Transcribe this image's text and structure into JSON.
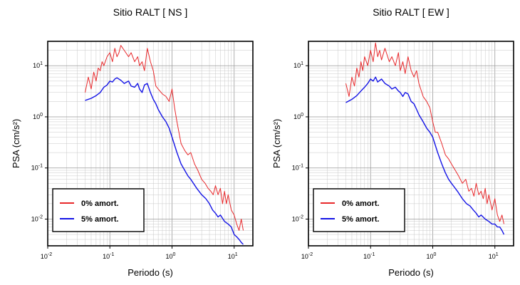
{
  "chart_data": [
    {
      "type": "line",
      "title": "Sitio RALT [ NS ]",
      "xlabel": "Periodo (s)",
      "ylabel": "PSA (cm/s²)",
      "xscale": "log",
      "yscale": "log",
      "xlim": [
        0.01,
        20
      ],
      "ylim": [
        0.003,
        30
      ],
      "grid": true,
      "legend_position": "bottom-left",
      "x_tick_labels": [
        "10-2",
        "10-1",
        "100",
        "101"
      ],
      "y_tick_labels": [
        "10-2",
        "10-1",
        "100",
        "101"
      ],
      "series": [
        {
          "name": "0% amort.",
          "color": "#e8282b",
          "x": [
            0.04,
            0.045,
            0.05,
            0.055,
            0.06,
            0.065,
            0.07,
            0.075,
            0.08,
            0.09,
            0.1,
            0.11,
            0.12,
            0.13,
            0.14,
            0.15,
            0.17,
            0.2,
            0.22,
            0.25,
            0.28,
            0.3,
            0.33,
            0.36,
            0.4,
            0.45,
            0.5,
            0.55,
            0.6,
            0.7,
            0.8,
            0.9,
            1.0,
            1.1,
            1.2,
            1.4,
            1.6,
            1.8,
            2.0,
            2.3,
            2.6,
            3.0,
            3.4,
            3.8,
            4.2,
            4.6,
            5.0,
            5.5,
            6.0,
            6.5,
            7.0,
            7.5,
            8.0,
            9.0,
            10.0,
            11.0,
            12.0,
            13.0,
            14.0
          ],
          "y": [
            3.0,
            6.0,
            3.5,
            7.5,
            5.0,
            9.0,
            8.0,
            12.0,
            10.0,
            15.0,
            18.0,
            12.0,
            22.0,
            15.0,
            18.0,
            25.0,
            20.0,
            15.0,
            18.0,
            12.0,
            15.0,
            10.0,
            12.0,
            8.0,
            22.0,
            12.0,
            8.0,
            4.0,
            3.5,
            2.8,
            2.5,
            2.0,
            3.5,
            1.5,
            0.8,
            0.3,
            0.22,
            0.18,
            0.2,
            0.12,
            0.09,
            0.06,
            0.05,
            0.04,
            0.035,
            0.03,
            0.045,
            0.03,
            0.04,
            0.02,
            0.035,
            0.02,
            0.03,
            0.015,
            0.012,
            0.008,
            0.006,
            0.01,
            0.006
          ]
        },
        {
          "name": "5% amort.",
          "color": "#1414e6",
          "x": [
            0.04,
            0.05,
            0.06,
            0.07,
            0.08,
            0.09,
            0.1,
            0.11,
            0.12,
            0.13,
            0.15,
            0.17,
            0.2,
            0.22,
            0.25,
            0.28,
            0.3,
            0.33,
            0.36,
            0.4,
            0.45,
            0.5,
            0.55,
            0.6,
            0.7,
            0.8,
            0.9,
            1.0,
            1.2,
            1.4,
            1.6,
            1.8,
            2.0,
            2.5,
            3.0,
            3.5,
            4.0,
            4.5,
            5.0,
            5.5,
            6.0,
            7.0,
            8.0,
            9.0,
            10.0,
            11.0,
            12.0,
            13.0,
            14.0
          ],
          "y": [
            2.1,
            2.3,
            2.6,
            3.0,
            3.8,
            4.2,
            5.0,
            4.8,
            5.5,
            5.8,
            5.2,
            4.5,
            5.0,
            4.0,
            3.8,
            4.5,
            3.5,
            3.0,
            4.2,
            4.5,
            3.0,
            2.2,
            1.8,
            1.4,
            1.0,
            0.8,
            0.6,
            0.4,
            0.2,
            0.12,
            0.09,
            0.07,
            0.06,
            0.04,
            0.03,
            0.025,
            0.02,
            0.015,
            0.013,
            0.011,
            0.012,
            0.009,
            0.008,
            0.007,
            0.005,
            0.0045,
            0.004,
            0.0035,
            0.0032
          ]
        }
      ]
    },
    {
      "type": "line",
      "title": "Sitio RALT [ EW ]",
      "xlabel": "Periodo (s)",
      "ylabel": "PSA (cm/s²)",
      "xscale": "log",
      "yscale": "log",
      "xlim": [
        0.01,
        20
      ],
      "ylim": [
        0.003,
        30
      ],
      "grid": true,
      "legend_position": "bottom-left",
      "x_tick_labels": [
        "10-2",
        "10-1",
        "100",
        "101"
      ],
      "y_tick_labels": [
        "10-2",
        "10-1",
        "100",
        "101"
      ],
      "series": [
        {
          "name": "0% amort.",
          "color": "#e8282b",
          "x": [
            0.04,
            0.045,
            0.05,
            0.055,
            0.06,
            0.065,
            0.07,
            0.075,
            0.08,
            0.09,
            0.1,
            0.11,
            0.12,
            0.13,
            0.14,
            0.15,
            0.17,
            0.2,
            0.22,
            0.25,
            0.28,
            0.3,
            0.33,
            0.36,
            0.4,
            0.45,
            0.5,
            0.55,
            0.6,
            0.7,
            0.8,
            0.9,
            1.0,
            1.1,
            1.2,
            1.4,
            1.6,
            1.8,
            2.0,
            2.3,
            2.6,
            3.0,
            3.4,
            3.8,
            4.2,
            4.6,
            5.0,
            5.5,
            6.0,
            6.5,
            7.0,
            7.5,
            8.0,
            9.0,
            10.0,
            11.0,
            12.0,
            13.0,
            14.0
          ],
          "y": [
            4.5,
            2.5,
            6.0,
            4.0,
            9.0,
            6.0,
            12.0,
            8.0,
            15.0,
            10.0,
            20.0,
            12.0,
            28.0,
            15.0,
            20.0,
            13.0,
            22.0,
            12.0,
            15.0,
            10.0,
            18.0,
            8.0,
            12.0,
            7.0,
            15.0,
            8.0,
            6.0,
            8.0,
            4.5,
            2.5,
            2.0,
            1.5,
            0.8,
            0.5,
            0.5,
            0.3,
            0.18,
            0.15,
            0.12,
            0.09,
            0.07,
            0.05,
            0.06,
            0.035,
            0.04,
            0.028,
            0.05,
            0.03,
            0.035,
            0.025,
            0.04,
            0.02,
            0.03,
            0.015,
            0.025,
            0.012,
            0.009,
            0.012,
            0.008
          ]
        },
        {
          "name": "5% amort.",
          "color": "#1414e6",
          "x": [
            0.04,
            0.05,
            0.06,
            0.07,
            0.08,
            0.09,
            0.1,
            0.11,
            0.12,
            0.13,
            0.15,
            0.17,
            0.2,
            0.22,
            0.25,
            0.28,
            0.3,
            0.33,
            0.36,
            0.4,
            0.45,
            0.5,
            0.55,
            0.6,
            0.7,
            0.8,
            0.9,
            1.0,
            1.2,
            1.4,
            1.6,
            1.8,
            2.0,
            2.5,
            3.0,
            3.5,
            4.0,
            4.5,
            5.0,
            5.5,
            6.0,
            7.0,
            8.0,
            9.0,
            10.0,
            11.0,
            12.0,
            13.0,
            14.0
          ],
          "y": [
            1.9,
            2.2,
            2.6,
            3.2,
            3.8,
            4.5,
            5.5,
            5.0,
            6.0,
            4.8,
            5.5,
            4.5,
            4.0,
            3.5,
            3.8,
            3.2,
            3.0,
            2.5,
            3.0,
            2.8,
            2.0,
            1.8,
            1.4,
            1.1,
            0.8,
            0.6,
            0.5,
            0.4,
            0.2,
            0.12,
            0.08,
            0.06,
            0.05,
            0.035,
            0.025,
            0.02,
            0.018,
            0.015,
            0.013,
            0.011,
            0.012,
            0.01,
            0.009,
            0.008,
            0.008,
            0.007,
            0.007,
            0.006,
            0.005
          ]
        }
      ]
    }
  ]
}
